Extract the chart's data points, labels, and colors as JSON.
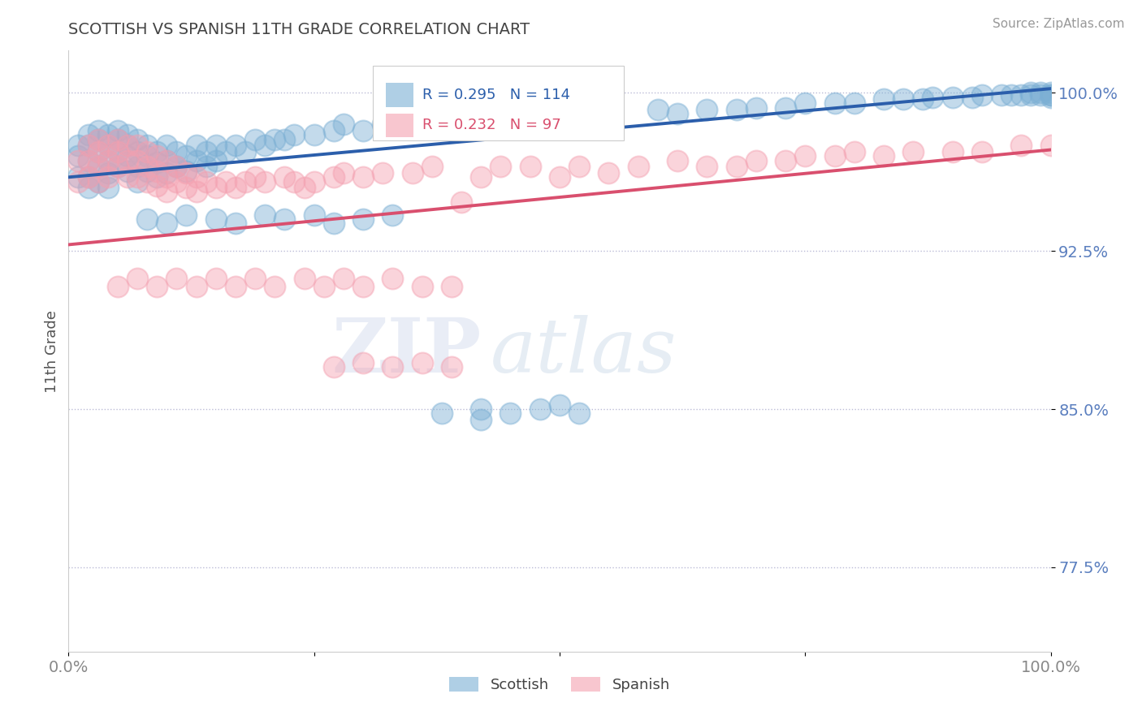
{
  "title": "SCOTTISH VS SPANISH 11TH GRADE CORRELATION CHART",
  "source_text": "Source: ZipAtlas.com",
  "ylabel": "11th Grade",
  "xlim": [
    0,
    1.0
  ],
  "ylim": [
    0.735,
    1.02
  ],
  "yticks": [
    0.775,
    0.85,
    0.925,
    1.0
  ],
  "ytick_labels": [
    "77.5%",
    "85.0%",
    "92.5%",
    "100.0%"
  ],
  "xtick_labels": [
    "0.0%",
    "",
    "",
    "",
    "100.0%"
  ],
  "blue_R": 0.295,
  "blue_N": 114,
  "pink_R": 0.232,
  "pink_N": 97,
  "blue_color": "#7BAFD4",
  "pink_color": "#F4A0B0",
  "blue_line_color": "#2B5EAB",
  "pink_line_color": "#D94F6E",
  "legend_label_blue": "Scottish",
  "legend_label_pink": "Spanish",
  "blue_trend": [
    0.0,
    0.96,
    1.0,
    1.002
  ],
  "pink_trend": [
    0.0,
    0.928,
    1.0,
    0.973
  ],
  "blue_scatter_x": [
    0.01,
    0.01,
    0.01,
    0.02,
    0.02,
    0.02,
    0.02,
    0.02,
    0.03,
    0.03,
    0.03,
    0.03,
    0.03,
    0.04,
    0.04,
    0.04,
    0.04,
    0.04,
    0.05,
    0.05,
    0.05,
    0.05,
    0.06,
    0.06,
    0.06,
    0.06,
    0.07,
    0.07,
    0.07,
    0.07,
    0.08,
    0.08,
    0.08,
    0.09,
    0.09,
    0.09,
    0.1,
    0.1,
    0.1,
    0.11,
    0.11,
    0.12,
    0.12,
    0.13,
    0.13,
    0.14,
    0.14,
    0.15,
    0.15,
    0.16,
    0.17,
    0.18,
    0.19,
    0.2,
    0.21,
    0.22,
    0.23,
    0.25,
    0.27,
    0.28,
    0.3,
    0.32,
    0.35,
    0.37,
    0.4,
    0.43,
    0.45,
    0.5,
    0.55,
    0.6,
    0.62,
    0.65,
    0.68,
    0.7,
    0.73,
    0.75,
    0.78,
    0.8,
    0.83,
    0.85,
    0.87,
    0.88,
    0.9,
    0.92,
    0.93,
    0.95,
    0.96,
    0.97,
    0.98,
    0.98,
    0.99,
    0.99,
    1.0,
    1.0,
    1.0,
    1.0,
    0.38,
    0.42,
    0.42,
    0.45,
    0.48,
    0.5,
    0.52,
    0.08,
    0.1,
    0.12,
    0.15,
    0.17,
    0.2,
    0.22,
    0.25,
    0.27,
    0.3,
    0.33
  ],
  "blue_scatter_y": [
    0.975,
    0.97,
    0.96,
    0.98,
    0.975,
    0.968,
    0.96,
    0.955,
    0.982,
    0.978,
    0.972,
    0.965,
    0.958,
    0.98,
    0.975,
    0.968,
    0.962,
    0.955,
    0.982,
    0.978,
    0.972,
    0.965,
    0.98,
    0.975,
    0.97,
    0.963,
    0.978,
    0.972,
    0.965,
    0.958,
    0.975,
    0.97,
    0.963,
    0.972,
    0.967,
    0.96,
    0.975,
    0.968,
    0.962,
    0.972,
    0.965,
    0.97,
    0.963,
    0.975,
    0.968,
    0.972,
    0.965,
    0.975,
    0.968,
    0.972,
    0.975,
    0.972,
    0.978,
    0.975,
    0.978,
    0.978,
    0.98,
    0.98,
    0.982,
    0.985,
    0.982,
    0.985,
    0.985,
    0.985,
    0.987,
    0.988,
    0.988,
    0.988,
    0.99,
    0.992,
    0.99,
    0.992,
    0.992,
    0.993,
    0.993,
    0.995,
    0.995,
    0.995,
    0.997,
    0.997,
    0.997,
    0.998,
    0.998,
    0.998,
    0.999,
    0.999,
    0.999,
    0.999,
    1.0,
    0.999,
    0.999,
    1.0,
    1.0,
    0.999,
    0.999,
    0.998,
    0.848,
    0.85,
    0.845,
    0.848,
    0.85,
    0.852,
    0.848,
    0.94,
    0.938,
    0.942,
    0.94,
    0.938,
    0.942,
    0.94,
    0.942,
    0.938,
    0.94,
    0.942
  ],
  "pink_scatter_x": [
    0.01,
    0.01,
    0.02,
    0.02,
    0.02,
    0.03,
    0.03,
    0.03,
    0.03,
    0.04,
    0.04,
    0.04,
    0.05,
    0.05,
    0.05,
    0.06,
    0.06,
    0.06,
    0.07,
    0.07,
    0.07,
    0.08,
    0.08,
    0.08,
    0.09,
    0.09,
    0.09,
    0.1,
    0.1,
    0.1,
    0.11,
    0.11,
    0.12,
    0.12,
    0.13,
    0.13,
    0.14,
    0.15,
    0.16,
    0.17,
    0.18,
    0.19,
    0.2,
    0.22,
    0.23,
    0.24,
    0.25,
    0.27,
    0.28,
    0.3,
    0.32,
    0.35,
    0.37,
    0.4,
    0.42,
    0.44,
    0.47,
    0.5,
    0.52,
    0.55,
    0.58,
    0.62,
    0.65,
    0.68,
    0.7,
    0.73,
    0.75,
    0.78,
    0.8,
    0.83,
    0.86,
    0.9,
    0.93,
    0.97,
    1.0,
    0.05,
    0.07,
    0.09,
    0.11,
    0.13,
    0.15,
    0.17,
    0.19,
    0.21,
    0.24,
    0.26,
    0.28,
    0.3,
    0.33,
    0.36,
    0.39,
    0.27,
    0.3,
    0.33,
    0.36,
    0.39
  ],
  "pink_scatter_y": [
    0.968,
    0.958,
    0.975,
    0.968,
    0.96,
    0.978,
    0.972,
    0.965,
    0.958,
    0.975,
    0.968,
    0.96,
    0.978,
    0.972,
    0.965,
    0.975,
    0.968,
    0.96,
    0.975,
    0.968,
    0.96,
    0.972,
    0.965,
    0.958,
    0.97,
    0.963,
    0.956,
    0.968,
    0.96,
    0.953,
    0.965,
    0.958,
    0.962,
    0.955,
    0.96,
    0.953,
    0.958,
    0.955,
    0.958,
    0.955,
    0.958,
    0.96,
    0.958,
    0.96,
    0.958,
    0.955,
    0.958,
    0.96,
    0.962,
    0.96,
    0.962,
    0.962,
    0.965,
    0.948,
    0.96,
    0.965,
    0.965,
    0.96,
    0.965,
    0.962,
    0.965,
    0.968,
    0.965,
    0.965,
    0.968,
    0.968,
    0.97,
    0.97,
    0.972,
    0.97,
    0.972,
    0.972,
    0.972,
    0.975,
    0.975,
    0.908,
    0.912,
    0.908,
    0.912,
    0.908,
    0.912,
    0.908,
    0.912,
    0.908,
    0.912,
    0.908,
    0.912,
    0.908,
    0.912,
    0.908,
    0.908,
    0.87,
    0.872,
    0.87,
    0.872,
    0.87
  ]
}
